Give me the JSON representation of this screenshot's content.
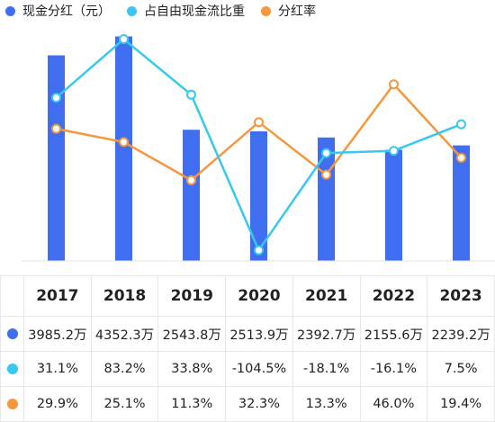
{
  "colors": {
    "dividend_bar": "#3f6ff0",
    "fcf_ratio_line": "#37c8f2",
    "payout_line": "#f7963b"
  },
  "legend": [
    {
      "label": "现金分红（元）",
      "color": "#3f6ff0"
    },
    {
      "label": "占自由现金流比重",
      "color": "#37c8f2"
    },
    {
      "label": "分红率",
      "color": "#f7963b"
    }
  ],
  "chart_data": {
    "type": "bar",
    "categories": [
      "2017",
      "2018",
      "2019",
      "2020",
      "2021",
      "2022",
      "2023"
    ],
    "series": [
      {
        "name": "现金分红（元）",
        "type": "bar",
        "values": [
          3985.2,
          4352.3,
          2543.8,
          2513.9,
          2392.7,
          2155.6,
          2239.2
        ],
        "unit": "万"
      },
      {
        "name": "占自由现金流比重",
        "type": "line",
        "values": [
          31.1,
          83.2,
          33.8,
          -104.5,
          -18.1,
          -16.1,
          7.5
        ],
        "unit": "%"
      },
      {
        "name": "分红率",
        "type": "line",
        "values": [
          29.9,
          25.1,
          11.3,
          32.3,
          13.3,
          46.0,
          19.4
        ],
        "unit": "%"
      }
    ],
    "grid": false
  },
  "table": {
    "headers": [
      "2017",
      "2018",
      "2019",
      "2020",
      "2021",
      "2022",
      "2023"
    ],
    "rows": [
      {
        "color": "#3f6ff0",
        "cells": [
          "3985.2万",
          "4352.3万",
          "2543.8万",
          "2513.9万",
          "2392.7万",
          "2155.6万",
          "2239.2万"
        ]
      },
      {
        "color": "#37c8f2",
        "cells": [
          "31.1%",
          "83.2%",
          "33.8%",
          "-104.5%",
          "-18.1%",
          "-16.1%",
          "7.5%"
        ]
      },
      {
        "color": "#f7963b",
        "cells": [
          "29.9%",
          "25.1%",
          "11.3%",
          "32.3%",
          "13.3%",
          "46.0%",
          "19.4%"
        ]
      }
    ]
  }
}
